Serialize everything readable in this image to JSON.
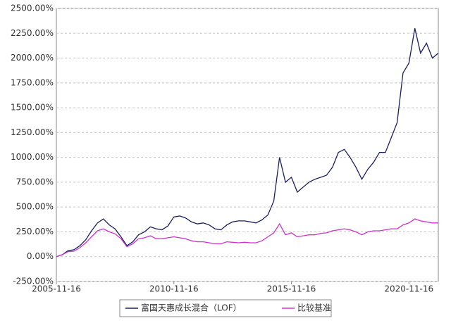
{
  "chart_data": {
    "type": "line",
    "x": [
      "2005-11-16",
      "2006-02-16",
      "2006-05-16",
      "2006-08-16",
      "2006-11-16",
      "2007-02-16",
      "2007-05-16",
      "2007-08-16",
      "2007-11-16",
      "2008-02-16",
      "2008-05-16",
      "2008-08-16",
      "2008-11-16",
      "2009-02-16",
      "2009-05-16",
      "2009-08-16",
      "2009-11-16",
      "2010-02-16",
      "2010-05-16",
      "2010-08-16",
      "2010-11-16",
      "2011-02-16",
      "2011-05-16",
      "2011-08-16",
      "2011-11-16",
      "2012-02-16",
      "2012-05-16",
      "2012-08-16",
      "2012-11-16",
      "2013-02-16",
      "2013-05-16",
      "2013-08-16",
      "2013-11-16",
      "2014-02-16",
      "2014-05-16",
      "2014-08-16",
      "2014-11-16",
      "2015-02-16",
      "2015-05-16",
      "2015-08-16",
      "2015-11-16",
      "2016-02-16",
      "2016-05-16",
      "2016-08-16",
      "2016-11-16",
      "2017-02-16",
      "2017-05-16",
      "2017-08-16",
      "2017-11-16",
      "2018-02-16",
      "2018-05-16",
      "2018-08-16",
      "2018-11-16",
      "2019-02-16",
      "2019-05-16",
      "2019-08-16",
      "2019-11-16",
      "2020-02-16",
      "2020-05-16",
      "2020-08-16",
      "2020-11-16",
      "2021-02-16",
      "2021-05-16",
      "2021-08-16",
      "2021-11-16",
      "2022-02-16"
    ],
    "series": [
      {
        "name": "富国天惠成长混合（LOF）",
        "color": "#1a1f5e",
        "values": [
          0,
          20,
          60,
          70,
          110,
          170,
          260,
          340,
          380,
          320,
          280,
          200,
          110,
          150,
          220,
          250,
          300,
          280,
          270,
          310,
          400,
          410,
          390,
          350,
          330,
          340,
          320,
          280,
          270,
          320,
          350,
          360,
          360,
          350,
          340,
          370,
          420,
          560,
          1000,
          750,
          800,
          650,
          700,
          750,
          780,
          800,
          820,
          900,
          1050,
          1080,
          1000,
          900,
          780,
          880,
          950,
          1050,
          1050,
          1200,
          1350,
          1850,
          1950,
          2300,
          2050,
          2150,
          2000,
          2050
        ]
      },
      {
        "name": "比较基准",
        "color": "#cc33cc",
        "values": [
          0,
          20,
          50,
          55,
          90,
          140,
          200,
          260,
          280,
          250,
          230,
          180,
          100,
          130,
          180,
          190,
          210,
          180,
          180,
          190,
          200,
          190,
          180,
          160,
          150,
          150,
          140,
          130,
          130,
          150,
          145,
          140,
          145,
          140,
          140,
          160,
          200,
          240,
          330,
          220,
          240,
          200,
          210,
          220,
          220,
          235,
          240,
          260,
          270,
          280,
          270,
          250,
          220,
          250,
          260,
          260,
          270,
          280,
          280,
          320,
          340,
          380,
          360,
          350,
          340,
          340
        ]
      }
    ],
    "xlim": [
      "2005-11-16",
      "2022-02-16"
    ],
    "xticks": [
      "2005-11-16",
      "2010-11-16",
      "2015-11-16",
      "2020-11-16"
    ],
    "ylim": [
      -250,
      2500
    ],
    "yticks": [
      {
        "value": -250,
        "label": "-250.00%"
      },
      {
        "value": 0,
        "label": "0.00%"
      },
      {
        "value": 250,
        "label": "250.00%"
      },
      {
        "value": 500,
        "label": "500.00%"
      },
      {
        "value": 750,
        "label": "750.00%"
      },
      {
        "value": 1000,
        "label": "1000.00%"
      },
      {
        "value": 1250,
        "label": "1250.00%"
      },
      {
        "value": 1500,
        "label": "1500.00%"
      },
      {
        "value": 1750,
        "label": "1750.00%"
      },
      {
        "value": 2000,
        "label": "2000.00%"
      },
      {
        "value": 2250,
        "label": "2250.00%"
      },
      {
        "value": 2500,
        "label": "2500.00%"
      }
    ],
    "grid": true
  }
}
